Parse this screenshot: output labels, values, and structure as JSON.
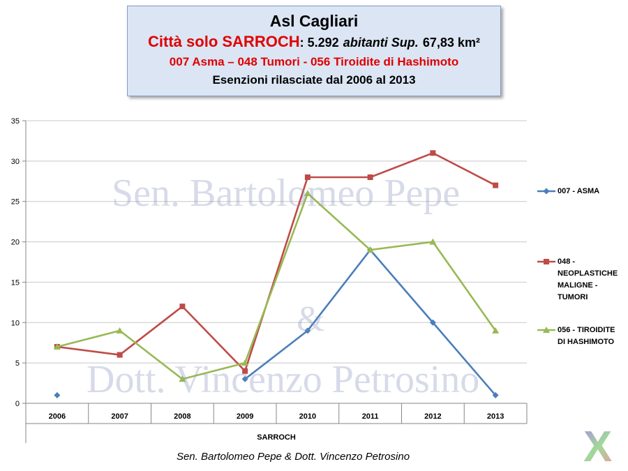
{
  "header": {
    "title": "Asl Cagliari",
    "city_label": "Città solo SARROCH",
    "population": ": 5.292",
    "population_word": "abitanti Sup.",
    "surface": "67,83 km²",
    "codes": "007 Asma – 048 Tumori  - 056 Tiroidite di Hashimoto",
    "subtitle": "Esenzioni rilasciate dal 2006 al 2013"
  },
  "watermarks": {
    "line1": "Sen. Bartolomeo Pepe",
    "amp": "&",
    "line2": "Dott. Vincenzo Petrosino"
  },
  "footer": "Sen. Bartolomeo  Pepe & Dott. Vincenzo Petrosino",
  "logo_letter": "X",
  "chart_data": {
    "type": "line",
    "categories": [
      "2006",
      "2007",
      "2008",
      "2009",
      "2010",
      "2011",
      "2012",
      "2013"
    ],
    "xlabel": "SARROCH",
    "ylabel": "",
    "ylim": [
      0,
      35
    ],
    "yticks": [
      0,
      5,
      10,
      15,
      20,
      25,
      30,
      35
    ],
    "grid": true,
    "legend_position": "right",
    "series": [
      {
        "name": "007 - ASMA",
        "legend_lines": [
          "007 - ASMA"
        ],
        "color": "#4a7ebb",
        "marker": "diamond",
        "values": [
          1,
          null,
          null,
          3,
          9,
          19,
          10,
          1
        ]
      },
      {
        "name": "048 - NEOPLASTICHE MALIGNE - TUMORI",
        "legend_lines": [
          "048 -",
          "NEOPLASTICHE",
          "MALIGNE -",
          "TUMORI"
        ],
        "color": "#be4b48",
        "marker": "square",
        "values": [
          7,
          6,
          12,
          4,
          28,
          28,
          31,
          27
        ]
      },
      {
        "name": "056 - TIROIDITE DI HASHIMOTO",
        "legend_lines": [
          "056 - TIROIDITE",
          "DI HASHIMOTO"
        ],
        "color": "#98b954",
        "marker": "triangle",
        "values": [
          7,
          9,
          3,
          5,
          26,
          19,
          20,
          9
        ]
      }
    ]
  }
}
